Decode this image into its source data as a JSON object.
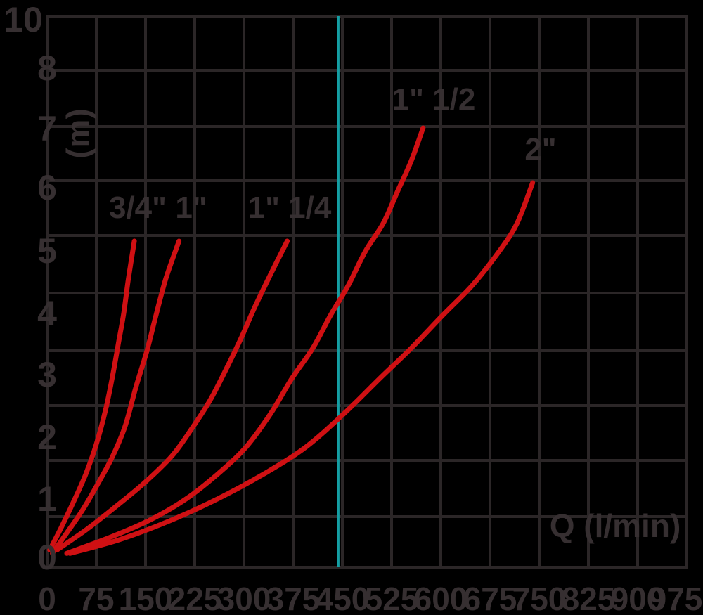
{
  "chart_data": {
    "type": "line",
    "title": "",
    "xlabel": "Q (l/min)",
    "ylabel": "(m)",
    "xlim": [
      0,
      975
    ],
    "ylim": [
      0,
      10
    ],
    "x_ticks": [
      0,
      75,
      150,
      225,
      300,
      375,
      450,
      525,
      600,
      675,
      750,
      825,
      900,
      975
    ],
    "y_tick_labels": [
      "10",
      "8",
      "7",
      "6",
      "5",
      "4",
      "3",
      "2",
      "1",
      "0"
    ],
    "grid": true,
    "legend_position": "labels-next-to-curves",
    "highlight_line": {
      "x": 444,
      "orientation": "vertical",
      "color": "#149fa4"
    },
    "series": [
      {
        "name": "3/4\"",
        "points": [
          [
            4,
            0.15
          ],
          [
            20,
            0.45
          ],
          [
            40,
            0.85
          ],
          [
            59,
            1.3
          ],
          [
            75,
            1.8
          ],
          [
            89,
            2.35
          ],
          [
            100,
            2.9
          ],
          [
            109,
            3.45
          ],
          [
            117,
            3.95
          ],
          [
            124,
            4.45
          ],
          [
            133,
            5
          ]
        ]
      },
      {
        "name": "1\"",
        "points": [
          [
            8,
            0.1
          ],
          [
            30,
            0.4
          ],
          [
            55,
            0.75
          ],
          [
            78,
            1.15
          ],
          [
            100,
            1.6
          ],
          [
            119,
            2.1
          ],
          [
            135,
            2.7
          ],
          [
            152,
            3.3
          ],
          [
            166,
            3.9
          ],
          [
            181,
            4.45
          ],
          [
            201,
            5
          ]
        ]
      },
      {
        "name": "1\" 1/4",
        "points": [
          [
            15,
            0.15
          ],
          [
            60,
            0.45
          ],
          [
            100,
            0.75
          ],
          [
            148,
            1.15
          ],
          [
            190,
            1.6
          ],
          [
            220,
            2.05
          ],
          [
            248,
            2.5
          ],
          [
            273,
            3.0
          ],
          [
            295,
            3.5
          ],
          [
            315,
            4.0
          ],
          [
            340,
            4.5
          ],
          [
            366,
            5
          ]
        ]
      },
      {
        "name": "1\" 1/2",
        "points": [
          [
            30,
            0.1
          ],
          [
            100,
            0.35
          ],
          [
            159,
            0.6
          ],
          [
            212,
            0.9
          ],
          [
            260,
            1.3
          ],
          [
            303,
            1.75
          ],
          [
            341,
            2.3
          ],
          [
            373,
            2.85
          ],
          [
            405,
            3.35
          ],
          [
            432,
            3.9
          ],
          [
            459,
            4.35
          ],
          [
            485,
            4.85
          ],
          [
            512,
            5.3
          ],
          [
            534,
            5.85
          ],
          [
            555,
            6.4
          ],
          [
            573,
            7
          ]
        ]
      },
      {
        "name": "2\"",
        "points": [
          [
            35,
            0.1
          ],
          [
            110,
            0.3
          ],
          [
            185,
            0.57
          ],
          [
            260,
            0.9
          ],
          [
            330,
            1.3
          ],
          [
            394,
            1.75
          ],
          [
            453,
            2.3
          ],
          [
            507,
            2.85
          ],
          [
            555,
            3.35
          ],
          [
            603,
            3.9
          ],
          [
            648,
            4.35
          ],
          [
            689,
            4.85
          ],
          [
            716,
            5.3
          ],
          [
            740,
            6
          ]
        ]
      }
    ],
    "colors": {
      "curve": "#cf1013",
      "grid": "#2b2627",
      "text": "#362f31",
      "background": "#000000",
      "highlight": "#149fa4"
    }
  }
}
